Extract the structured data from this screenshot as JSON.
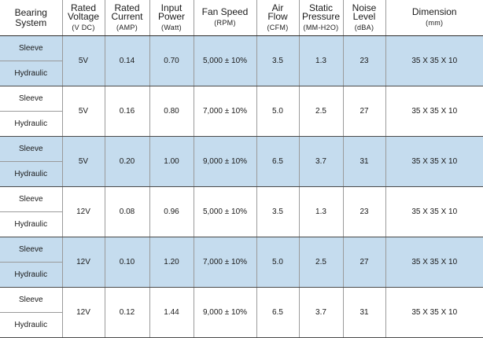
{
  "headers": [
    {
      "line1": "Bearing",
      "line2": "System",
      "unit": ""
    },
    {
      "line1": "Rated",
      "line2": "Voltage",
      "unit": "(V DC)"
    },
    {
      "line1": "Rated",
      "line2": "Current",
      "unit": "(AMP)"
    },
    {
      "line1": "Input",
      "line2": "Power",
      "unit": "(Watt)"
    },
    {
      "line1": "Fan Speed",
      "line2": "",
      "unit": "(RPM)"
    },
    {
      "line1": "Air",
      "line2": "Flow",
      "unit": "(CFM)"
    },
    {
      "line1": "Static",
      "line2": "Pressure",
      "unit": "(MM-H2O)"
    },
    {
      "line1": "Noise",
      "line2": "Level",
      "unit": "(dBA)"
    },
    {
      "line1": "Dimension",
      "line2": "",
      "unit": "(mm)"
    }
  ],
  "rows": [
    {
      "bearing_top": "Sleeve",
      "bearing_bottom": "Hydraulic",
      "voltage": "5V",
      "current": "0.14",
      "power": "0.70",
      "speed": "5,000 ± 10%",
      "airflow": "3.5",
      "pressure": "1.3",
      "noise": "23",
      "dimension": "35 X 35 X 10",
      "shaded": true
    },
    {
      "bearing_top": "Sleeve",
      "bearing_bottom": "Hydraulic",
      "voltage": "5V",
      "current": "0.16",
      "power": "0.80",
      "speed": "7,000 ± 10%",
      "airflow": "5.0",
      "pressure": "2.5",
      "noise": "27",
      "dimension": "35 X 35 X 10",
      "shaded": false
    },
    {
      "bearing_top": "Sleeve",
      "bearing_bottom": "Hydraulic",
      "voltage": "5V",
      "current": "0.20",
      "power": "1.00",
      "speed": "9,000 ± 10%",
      "airflow": "6.5",
      "pressure": "3.7",
      "noise": "31",
      "dimension": "35 X 35 X 10",
      "shaded": true
    },
    {
      "bearing_top": "Sleeve",
      "bearing_bottom": "Hydraulic",
      "voltage": "12V",
      "current": "0.08",
      "power": "0.96",
      "speed": "5,000 ± 10%",
      "airflow": "3.5",
      "pressure": "1.3",
      "noise": "23",
      "dimension": "35 X 35 X 10",
      "shaded": false
    },
    {
      "bearing_top": "Sleeve",
      "bearing_bottom": "Hydraulic",
      "voltage": "12V",
      "current": "0.10",
      "power": "1.20",
      "speed": "7,000 ± 10%",
      "airflow": "5.0",
      "pressure": "2.5",
      "noise": "27",
      "dimension": "35 X 35 X 10",
      "shaded": true
    },
    {
      "bearing_top": "Sleeve",
      "bearing_bottom": "Hydraulic",
      "voltage": "12V",
      "current": "0.12",
      "power": "1.44",
      "speed": "9,000 ± 10%",
      "airflow": "6.5",
      "pressure": "3.7",
      "noise": "31",
      "dimension": "35 X 35 X 10",
      "shaded": false
    }
  ],
  "colors": {
    "shaded_row": "#c5dcee",
    "header_rule": "#2c2c2c"
  }
}
